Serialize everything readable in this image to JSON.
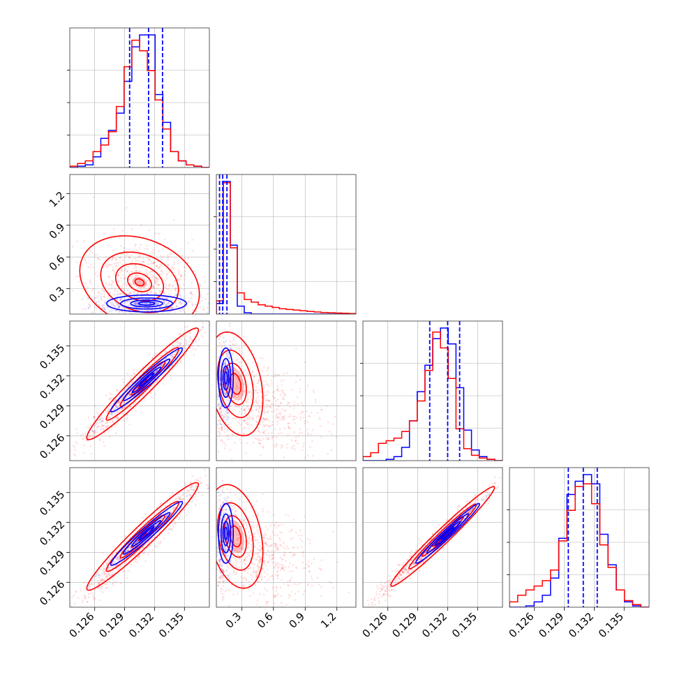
{
  "chart_data": {
    "type": "corner",
    "colors": {
      "blue": "#0000ff",
      "red": "#ff0000",
      "grid": "#b0b0b0"
    },
    "grid": true,
    "parameters": [
      {
        "index": 0,
        "range": [
          0.1235,
          0.1375
        ],
        "ticks": [
          "0.126",
          "0.129",
          "0.132",
          "0.135"
        ],
        "tick_values": [
          0.126,
          0.129,
          0.132,
          0.135
        ]
      },
      {
        "index": 1,
        "range": [
          0.06,
          1.38
        ],
        "ticks": [
          "0.3",
          "0.6",
          "0.9",
          "1.2"
        ],
        "tick_values": [
          0.3,
          0.6,
          0.9,
          1.2
        ]
      },
      {
        "index": 2,
        "range": [
          0.1235,
          0.1375
        ],
        "ticks": [
          "0.126",
          "0.129",
          "0.132",
          "0.135"
        ],
        "tick_values": [
          0.126,
          0.129,
          0.132,
          0.135
        ]
      },
      {
        "index": 3,
        "range": [
          0.1235,
          0.1375
        ],
        "ticks": [
          "0.126",
          "0.129",
          "0.132",
          "0.135"
        ],
        "tick_values": [
          0.126,
          0.129,
          0.132,
          0.135
        ]
      }
    ],
    "marginals": [
      {
        "param": 0,
        "quantile_lines": [
          0.1295,
          0.1314,
          0.1328
        ],
        "series": [
          {
            "color": "blue",
            "counts": [
              0,
              0.01,
              0.02,
              0.08,
              0.22,
              0.28,
              0.41,
              0.65,
              0.91,
              1.0,
              1.0,
              0.55,
              0.34,
              0.12,
              0.05,
              0.02,
              0.01,
              0
            ]
          },
          {
            "color": "red",
            "counts": [
              0.01,
              0.03,
              0.05,
              0.12,
              0.17,
              0.27,
              0.46,
              0.76,
              0.96,
              0.88,
              0.73,
              0.51,
              0.29,
              0.12,
              0.05,
              0.02,
              0.01,
              0
            ]
          }
        ]
      },
      {
        "param": 1,
        "quantile_lines": [
          0.09,
          0.12,
          0.16
        ],
        "series": [
          {
            "color": "blue",
            "counts": [
              0.08,
              1.0,
              0.52,
              0.06,
              0.01,
              0,
              0,
              0,
              0,
              0,
              0,
              0,
              0,
              0,
              0,
              0,
              0,
              0,
              0,
              0
            ]
          },
          {
            "color": "red",
            "counts": [
              0.1,
              0.99,
              0.5,
              0.16,
              0.11,
              0.09,
              0.07,
              0.06,
              0.05,
              0.04,
              0.035,
              0.03,
              0.025,
              0.02,
              0.016,
              0.012,
              0.01,
              0.008,
              0.006,
              0.004
            ]
          }
        ]
      },
      {
        "param": 2,
        "quantile_lines": [
          0.1302,
          0.132,
          0.1332
        ],
        "series": [
          {
            "color": "blue",
            "counts": [
              0,
              0,
              0,
              0.01,
              0.03,
              0.1,
              0.3,
              0.52,
              0.72,
              0.92,
              1.0,
              0.88,
              0.55,
              0.23,
              0.08,
              0.03,
              0.01,
              0
            ]
          },
          {
            "color": "red",
            "counts": [
              0.03,
              0.06,
              0.13,
              0.15,
              0.17,
              0.22,
              0.3,
              0.45,
              0.68,
              0.97,
              0.85,
              0.62,
              0.24,
              0.09,
              0.04,
              0.02,
              0.01,
              0
            ]
          }
        ]
      },
      {
        "param": 3,
        "quantile_lines": [
          0.1294,
          0.1309,
          0.1323
        ],
        "series": [
          {
            "color": "blue",
            "counts": [
              0,
              0,
              0.01,
              0.04,
              0.09,
              0.22,
              0.52,
              0.85,
              0.95,
              1.0,
              0.93,
              0.55,
              0.32,
              0.13,
              0.04,
              0.01,
              0
            ]
          },
          {
            "color": "red",
            "counts": [
              0.04,
              0.09,
              0.13,
              0.16,
              0.2,
              0.28,
              0.5,
              0.73,
              0.91,
              0.93,
              0.78,
              0.47,
              0.3,
              0.13,
              0.05,
              0.02,
              0
            ]
          }
        ]
      }
    ],
    "joints": [
      {
        "row": 1,
        "col": 0,
        "clouds": [
          {
            "color": "blue",
            "center": [
              0.1305,
              0.16
            ],
            "spread": [
              0.0025,
              0.05
            ],
            "rho": 0.1,
            "n": 300
          },
          {
            "color": "red",
            "center": [
              0.1305,
              0.34
            ],
            "spread": [
              0.003,
              0.22
            ],
            "rho": -0.2,
            "n": 700
          }
        ],
        "contours": [
          {
            "color": "red",
            "center": [
              0.1305,
              0.36
            ],
            "spread": [
              0.003,
              0.22
            ],
            "rho": -0.25,
            "levels": [
              2.0,
              1.3,
              0.8,
              0.4,
              0.15
            ]
          },
          {
            "color": "blue",
            "center": [
              0.1312,
              0.16
            ],
            "spread": [
              0.002,
              0.04
            ],
            "rho": 0.0,
            "levels": [
              2.0,
              1.3,
              0.8,
              0.4
            ]
          }
        ]
      },
      {
        "row": 2,
        "col": 0,
        "clouds": [
          {
            "color": "blue",
            "center": [
              0.131,
              0.1314
            ],
            "spread": [
              0.002,
              0.0018
            ],
            "rho": 0.97,
            "n": 300
          },
          {
            "color": "red",
            "center": [
              0.1305,
              0.1309
            ],
            "spread": [
              0.003,
              0.003
            ],
            "rho": 0.96,
            "n": 700
          }
        ],
        "contours": [
          {
            "color": "red",
            "center": [
              0.1308,
              0.1312
            ],
            "spread": [
              0.0028,
              0.0028
            ],
            "rho": 0.965,
            "levels": [
              2.0,
              1.3,
              0.8,
              0.4,
              0.15
            ]
          },
          {
            "color": "blue",
            "center": [
              0.1312,
              0.1316
            ],
            "spread": [
              0.0018,
              0.0016
            ],
            "rho": 0.97,
            "levels": [
              2.0,
              1.3,
              0.8,
              0.4
            ]
          }
        ]
      },
      {
        "row": 2,
        "col": 1,
        "clouds": [
          {
            "color": "blue",
            "center": [
              0.14,
              0.131
            ],
            "spread": [
              0.04,
              0.0018
            ],
            "rho": 0.2,
            "n": 300
          },
          {
            "color": "red",
            "center": [
              0.42,
              0.1292
            ],
            "spread": [
              0.3,
              0.0025
            ],
            "rho": -0.3,
            "n": 700
          }
        ],
        "contours": [
          {
            "color": "red",
            "center": [
              0.24,
              0.1312
            ],
            "spread": [
              0.13,
              0.0026
            ],
            "rho": -0.3,
            "levels": [
              2.0,
              1.3,
              0.8,
              0.4
            ]
          },
          {
            "color": "blue",
            "center": [
              0.15,
              0.1318
            ],
            "spread": [
              0.035,
              0.0015
            ],
            "rho": 0.0,
            "levels": [
              2.0,
              1.3,
              0.8,
              0.4
            ]
          }
        ]
      },
      {
        "row": 3,
        "col": 0,
        "clouds": [
          {
            "color": "blue",
            "center": [
              0.131,
              0.1306
            ],
            "spread": [
              0.002,
              0.0018
            ],
            "rho": 0.97,
            "n": 300
          },
          {
            "color": "red",
            "center": [
              0.1305,
              0.13
            ],
            "spread": [
              0.003,
              0.003
            ],
            "rho": 0.96,
            "n": 700
          }
        ],
        "contours": [
          {
            "color": "red",
            "center": [
              0.1308,
              0.1306
            ],
            "spread": [
              0.0028,
              0.0027
            ],
            "rho": 0.965,
            "levels": [
              2.0,
              1.3,
              0.8,
              0.4,
              0.15
            ]
          },
          {
            "color": "blue",
            "center": [
              0.1312,
              0.1309
            ],
            "spread": [
              0.0018,
              0.0016
            ],
            "rho": 0.97,
            "levels": [
              2.0,
              1.3,
              0.8,
              0.4
            ]
          }
        ]
      },
      {
        "row": 3,
        "col": 1,
        "clouds": [
          {
            "color": "blue",
            "center": [
              0.14,
              0.1305
            ],
            "spread": [
              0.04,
              0.0018
            ],
            "rho": 0.2,
            "n": 300
          },
          {
            "color": "red",
            "center": [
              0.42,
              0.1288
            ],
            "spread": [
              0.3,
              0.0025
            ],
            "rho": -0.3,
            "n": 700
          }
        ],
        "contours": [
          {
            "color": "red",
            "center": [
              0.24,
              0.1306
            ],
            "spread": [
              0.13,
              0.0026
            ],
            "rho": -0.3,
            "levels": [
              2.0,
              1.3,
              0.8,
              0.4
            ]
          },
          {
            "color": "blue",
            "center": [
              0.15,
              0.1309
            ],
            "spread": [
              0.035,
              0.0015
            ],
            "rho": 0.0,
            "levels": [
              2.0,
              1.3,
              0.8,
              0.4
            ]
          }
        ]
      },
      {
        "row": 3,
        "col": 2,
        "clouds": [
          {
            "color": "blue",
            "center": [
              0.1318,
              0.1309
            ],
            "spread": [
              0.0017,
              0.0016
            ],
            "rho": 0.98,
            "n": 300
          },
          {
            "color": "red",
            "center": [
              0.1305,
              0.1298
            ],
            "spread": [
              0.0032,
              0.003
            ],
            "rho": 0.985,
            "n": 700
          }
        ],
        "contours": [
          {
            "color": "red",
            "center": [
              0.1315,
              0.1306
            ],
            "spread": [
              0.0026,
              0.0025
            ],
            "rho": 0.98,
            "levels": [
              2.0,
              1.3,
              0.8,
              0.4,
              0.15
            ]
          },
          {
            "color": "blue",
            "center": [
              0.132,
              0.1309
            ],
            "spread": [
              0.0016,
              0.0015
            ],
            "rho": 0.98,
            "levels": [
              2.0,
              1.3,
              0.8,
              0.4
            ]
          }
        ]
      }
    ]
  }
}
